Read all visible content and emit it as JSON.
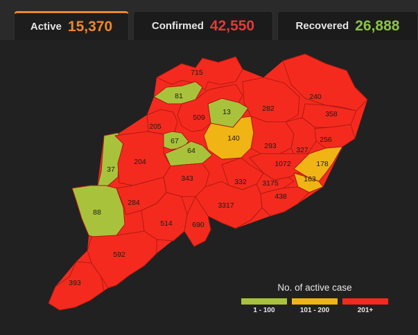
{
  "tabs": [
    {
      "label": "Active",
      "value": "15,370",
      "color": "#f0882a"
    },
    {
      "label": "Confirmed",
      "value": "42,550",
      "color": "#e03b3b"
    },
    {
      "label": "Recovered",
      "value": "26,888",
      "color": "#8bc34a"
    }
  ],
  "colors": {
    "low": "#a8c33b",
    "mid": "#f0b414",
    "high": "#f52a1e"
  },
  "legend": {
    "title": "No. of active case",
    "items": [
      {
        "label": "1 - 100",
        "color": "#a8c33b"
      },
      {
        "label": "101 - 200",
        "color": "#f0b414"
      },
      {
        "label": "201+",
        "color": "#f52a1e"
      }
    ]
  },
  "districts": [
    {
      "value": "715",
      "band": "high"
    },
    {
      "value": "81",
      "band": "low"
    },
    {
      "value": "240",
      "band": "high"
    },
    {
      "value": "282",
      "band": "high"
    },
    {
      "value": "358",
      "band": "high"
    },
    {
      "value": "13",
      "band": "low"
    },
    {
      "value": "509",
      "band": "high"
    },
    {
      "value": "205",
      "band": "high"
    },
    {
      "value": "256",
      "band": "high"
    },
    {
      "value": "67",
      "band": "low"
    },
    {
      "value": "140",
      "band": "mid"
    },
    {
      "value": "293",
      "band": "high"
    },
    {
      "value": "327",
      "band": "high"
    },
    {
      "value": "64",
      "band": "low"
    },
    {
      "value": "37",
      "band": "low"
    },
    {
      "value": "204",
      "band": "high"
    },
    {
      "value": "1072",
      "band": "high"
    },
    {
      "value": "178",
      "band": "mid"
    },
    {
      "value": "343",
      "band": "high"
    },
    {
      "value": "332",
      "band": "high"
    },
    {
      "value": "3175",
      "band": "high"
    },
    {
      "value": "163",
      "band": "mid"
    },
    {
      "value": "88",
      "band": "low"
    },
    {
      "value": "284",
      "band": "high"
    },
    {
      "value": "438",
      "band": "high"
    },
    {
      "value": "3317",
      "band": "high"
    },
    {
      "value": "514",
      "band": "high"
    },
    {
      "value": "690",
      "band": "high"
    },
    {
      "value": "592",
      "band": "high"
    },
    {
      "value": "393",
      "band": "high"
    }
  ]
}
